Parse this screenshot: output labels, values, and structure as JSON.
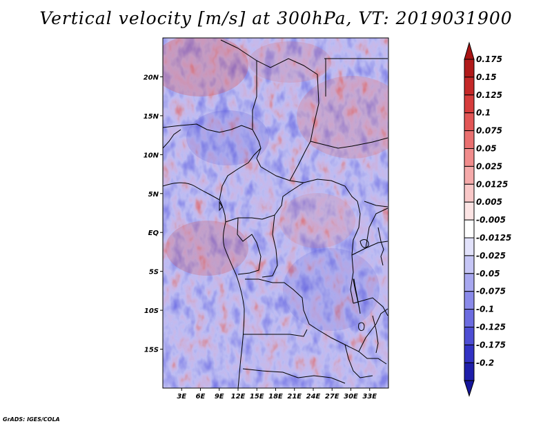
{
  "title": "Vertical velocity [m/s] at 300hPa, VT: 2019031900",
  "credit": "GrADS: IGES/COLA",
  "map": {
    "lon_range": [
      0,
      36
    ],
    "lat_range": [
      -20,
      25
    ],
    "lat_ticks": [
      {
        "value": 20,
        "label": "20N"
      },
      {
        "value": 15,
        "label": "15N"
      },
      {
        "value": 10,
        "label": "10N"
      },
      {
        "value": 5,
        "label": "5N"
      },
      {
        "value": 0,
        "label": "EQ"
      },
      {
        "value": -5,
        "label": "5S"
      },
      {
        "value": -10,
        "label": "10S"
      },
      {
        "value": -15,
        "label": "15S"
      }
    ],
    "lon_ticks": [
      {
        "value": 3,
        "label": "3E"
      },
      {
        "value": 6,
        "label": "6E"
      },
      {
        "value": 9,
        "label": "9E"
      },
      {
        "value": 12,
        "label": "12E"
      },
      {
        "value": 15,
        "label": "15E"
      },
      {
        "value": 18,
        "label": "18E"
      },
      {
        "value": 21,
        "label": "21E"
      },
      {
        "value": 24,
        "label": "24E"
      },
      {
        "value": 27,
        "label": "27E"
      },
      {
        "value": 30,
        "label": "30E"
      },
      {
        "value": 33,
        "label": "33E"
      }
    ],
    "field": "vertical velocity at 300hPa"
  },
  "colorbar": {
    "levels": [
      {
        "label": "0.175",
        "color": "#b01a1a"
      },
      {
        "label": "0.15",
        "color": "#c42828"
      },
      {
        "label": "0.125",
        "color": "#d63c3c"
      },
      {
        "label": "0.1",
        "color": "#e25656"
      },
      {
        "label": "0.075",
        "color": "#ea7070"
      },
      {
        "label": "0.05",
        "color": "#f08c8c"
      },
      {
        "label": "0.025",
        "color": "#f5aaaa"
      },
      {
        "label": "0.0125",
        "color": "#f9c8c8"
      },
      {
        "label": "0.005",
        "color": "#fce4e4"
      },
      {
        "label": "-0.005",
        "color": "#ffffff"
      },
      {
        "label": "-0.0125",
        "color": "#e2e2fb"
      },
      {
        "label": "-0.025",
        "color": "#c6c6f6"
      },
      {
        "label": "-0.05",
        "color": "#a8a8f0"
      },
      {
        "label": "-0.075",
        "color": "#8a8aea"
      },
      {
        "label": "-0.1",
        "color": "#6c6ce0"
      },
      {
        "label": "-0.125",
        "color": "#4e4ed4"
      },
      {
        "label": "-0.175",
        "color": "#3232c4"
      },
      {
        "label": "-0.2",
        "color": "#1e1eaa"
      }
    ],
    "top_color": "#a81414",
    "bottom_color": "#16169c"
  }
}
